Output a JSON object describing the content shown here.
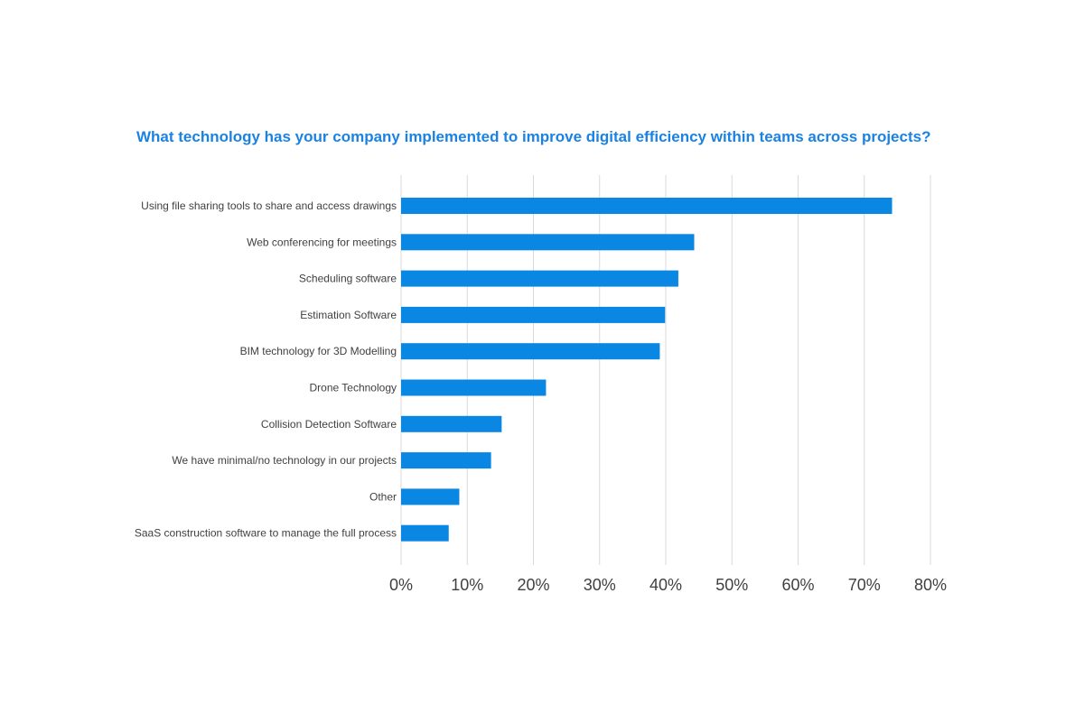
{
  "chart_data": {
    "type": "bar",
    "orientation": "horizontal",
    "title": "What technology has your company implemented to improve digital efficiency within teams across projects?",
    "xlabel": "",
    "ylabel": "",
    "categories": [
      "Using file sharing tools to share and access drawings",
      "Web conferencing for meetings",
      "Scheduling software",
      "Estimation Software",
      "BIM technology for 3D Modelling",
      "Drone Technology",
      "Collision Detection Software",
      "We have minimal/no technology in our projects",
      "Other",
      "SaaS construction software to manage the full process"
    ],
    "values": [
      74.2,
      44.3,
      41.9,
      39.9,
      39.1,
      21.9,
      15.2,
      13.6,
      8.8,
      7.2
    ],
    "xlim": [
      0,
      80
    ],
    "x_ticks": [
      0,
      10,
      20,
      30,
      40,
      50,
      60,
      70,
      80
    ],
    "x_tick_labels": [
      "0%",
      "10%",
      "20%",
      "30%",
      "40%",
      "50%",
      "60%",
      "70%",
      "80%"
    ],
    "grid": true,
    "legend": "none",
    "bar_color": "#0a87e3",
    "title_color": "#1a82e2"
  }
}
